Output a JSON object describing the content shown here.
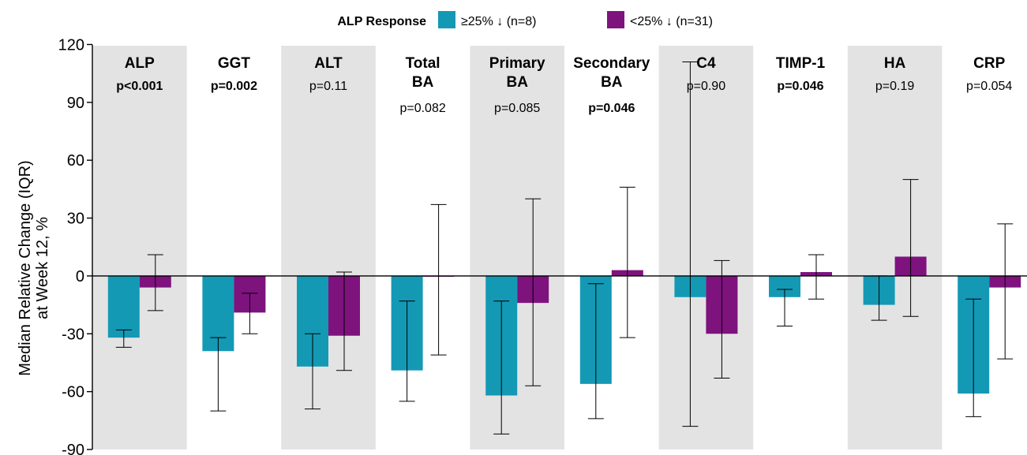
{
  "legend": {
    "title": "ALP Response",
    "items": [
      {
        "label": "≥25% ↓ (n=8)",
        "color": "#1499B5"
      },
      {
        "label": "<25% ↓ (n=31)",
        "color": "#7E137E"
      }
    ]
  },
  "chart_data": {
    "type": "bar",
    "ylabel_lines": [
      "Median Relative Change (IQR)",
      "at Week 12, %"
    ],
    "ylim": [
      -90,
      130
    ],
    "yticks": [
      120,
      90,
      60,
      30,
      0,
      -30,
      -60,
      -90
    ],
    "shading_color": "#E3E3E3",
    "categories": [
      {
        "name_lines": [
          "ALP"
        ],
        "pvalue": "p<0.001",
        "significant": true,
        "shaded": true
      },
      {
        "name_lines": [
          "GGT"
        ],
        "pvalue": "p=0.002",
        "significant": true,
        "shaded": false
      },
      {
        "name_lines": [
          "ALT"
        ],
        "pvalue": "p=0.11",
        "significant": false,
        "shaded": true
      },
      {
        "name_lines": [
          "Total",
          "BA"
        ],
        "pvalue": "p=0.082",
        "significant": false,
        "shaded": false
      },
      {
        "name_lines": [
          "Primary",
          "BA"
        ],
        "pvalue": "p=0.085",
        "significant": false,
        "shaded": true
      },
      {
        "name_lines": [
          "Secondary",
          "BA"
        ],
        "pvalue": "p=0.046",
        "significant": true,
        "shaded": false
      },
      {
        "name_lines": [
          "C4"
        ],
        "pvalue": "p=0.90",
        "significant": false,
        "shaded": true
      },
      {
        "name_lines": [
          "TIMP-1"
        ],
        "pvalue": "p=0.046",
        "significant": true,
        "shaded": false
      },
      {
        "name_lines": [
          "HA"
        ],
        "pvalue": "p=0.19",
        "significant": false,
        "shaded": true
      },
      {
        "name_lines": [
          "CRP"
        ],
        "pvalue": "p=0.054",
        "significant": false,
        "shaded": false
      }
    ],
    "series": [
      {
        "name": "≥25% ↓ (n=8)",
        "color": "#1499B5",
        "values": [
          -32,
          -39,
          -47,
          -49,
          -62,
          -56,
          -11,
          -11,
          -15,
          -61
        ],
        "q1": [
          -37,
          -70,
          -69,
          -65,
          -82,
          -74,
          -78,
          -26,
          -23,
          -73
        ],
        "q3": [
          -28,
          -32,
          -30,
          -13,
          -13,
          -4,
          111,
          -7,
          0,
          -12
        ]
      },
      {
        "name": "<25% ↓ (n=31)",
        "color": "#7E137E",
        "values": [
          -6,
          -19,
          -31,
          0,
          -14,
          3,
          -30,
          2,
          10,
          -6
        ],
        "q1": [
          -18,
          -30,
          -49,
          -41,
          -57,
          -32,
          -53,
          -12,
          -21,
          -43
        ],
        "q3": [
          11,
          -9,
          2,
          37,
          40,
          46,
          8,
          11,
          50,
          27
        ]
      }
    ]
  }
}
